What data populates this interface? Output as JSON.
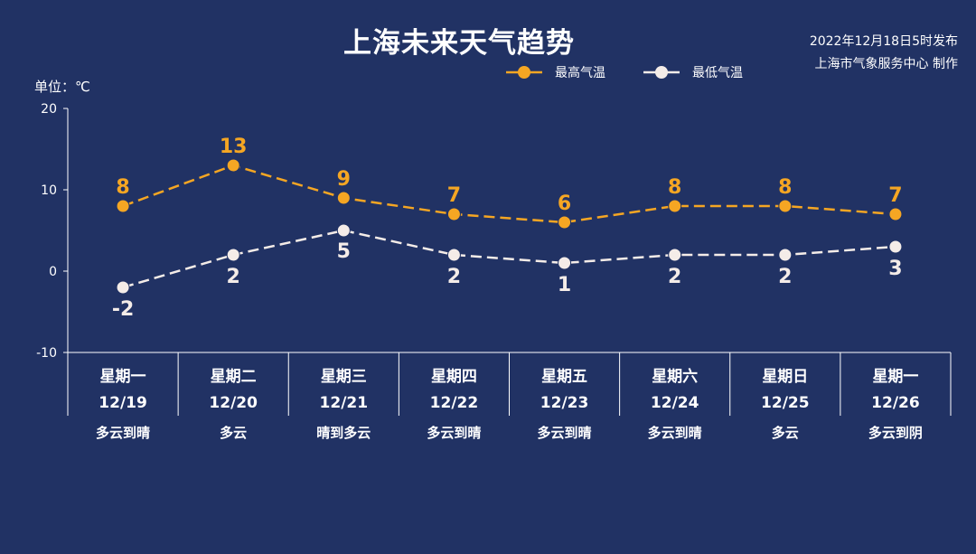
{
  "header": {
    "title": "上海未来天气趋势",
    "published": "2022年12月18日5时发布",
    "producer": "上海市气象服务中心 制作",
    "unit": "单位：℃"
  },
  "chart_data": {
    "type": "line",
    "title": "上海未来天气趋势",
    "ylabel": "单位：℃",
    "ylim": [
      -10,
      20
    ],
    "yticks": [
      "20",
      "10",
      "0",
      "-10"
    ],
    "categories": [
      "星期一",
      "星期二",
      "星期三",
      "星期四",
      "星期五",
      "星期六",
      "星期日",
      "星期一"
    ],
    "dates": [
      "12/19",
      "12/20",
      "12/21",
      "12/22",
      "12/23",
      "12/24",
      "12/25",
      "12/26"
    ],
    "weather": [
      "多云到晴",
      "多云",
      "晴到多云",
      "多云到晴",
      "多云到晴",
      "多云到晴",
      "多云",
      "多云到阴"
    ],
    "legend_position": "top-right",
    "series": [
      {
        "name": "最高气温",
        "color": "#f5a623",
        "values": [
          8,
          13,
          9,
          7,
          6,
          8,
          8,
          7
        ]
      },
      {
        "name": "最低气温",
        "color": "#f4ece8",
        "values": [
          -2,
          2,
          5,
          2,
          1,
          2,
          2,
          3
        ]
      }
    ]
  }
}
